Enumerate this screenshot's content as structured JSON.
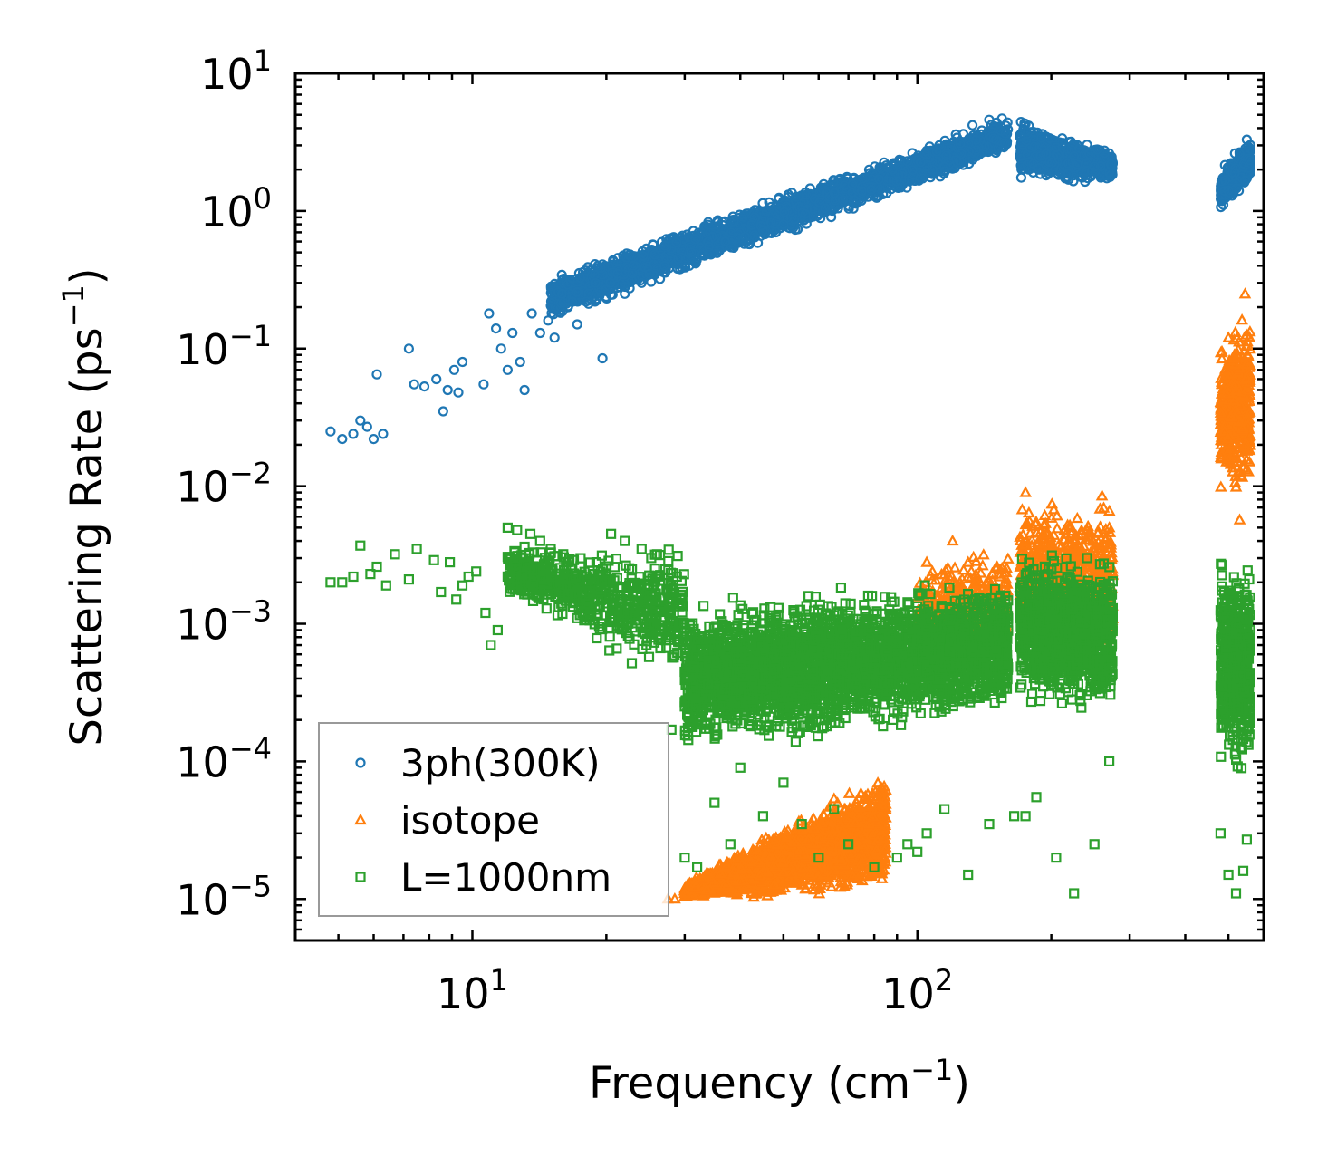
{
  "chart_data": {
    "type": "scatter",
    "xscale": "log",
    "yscale": "log",
    "xlim": [
      4,
      600
    ],
    "ylim": [
      5e-06,
      10
    ],
    "xlabel": "Frequency (cm",
    "xlabel_sup": "−1",
    "xlabel_close": ")",
    "ylabel": "Scattering Rate (ps",
    "ylabel_sup": "−1",
    "ylabel_close": ")",
    "x_ticks": [
      {
        "value": 10,
        "base": "10",
        "exp": "1"
      },
      {
        "value": 100,
        "base": "10",
        "exp": "2"
      }
    ],
    "y_ticks": [
      {
        "value": 10,
        "base": "10",
        "exp": "1"
      },
      {
        "value": 1,
        "base": "10",
        "exp": "0"
      },
      {
        "value": 0.1,
        "base": "10",
        "exp": "−1"
      },
      {
        "value": 0.01,
        "base": "10",
        "exp": "−2"
      },
      {
        "value": 0.001,
        "base": "10",
        "exp": "−3"
      },
      {
        "value": 0.0001,
        "base": "10",
        "exp": "−4"
      },
      {
        "value": 1e-05,
        "base": "10",
        "exp": "−5"
      }
    ],
    "legend_position": "lower-left",
    "series": [
      {
        "name": "3ph(300K)",
        "marker": "circle",
        "color": "#1f77b4",
        "points": [
          [
            4.8,
            0.025
          ],
          [
            5.1,
            0.022
          ],
          [
            5.4,
            0.024
          ],
          [
            5.6,
            0.03
          ],
          [
            5.8,
            0.027
          ],
          [
            6.0,
            0.022
          ],
          [
            6.3,
            0.024
          ],
          [
            6.1,
            0.065
          ],
          [
            7.2,
            0.1
          ],
          [
            7.4,
            0.055
          ],
          [
            7.8,
            0.053
          ],
          [
            8.3,
            0.06
          ],
          [
            8.6,
            0.035
          ],
          [
            8.8,
            0.05
          ],
          [
            9.1,
            0.07
          ],
          [
            9.3,
            0.048
          ],
          [
            9.5,
            0.08
          ],
          [
            10.6,
            0.055
          ],
          [
            10.9,
            0.18
          ],
          [
            11.3,
            0.14
          ],
          [
            11.6,
            0.1
          ],
          [
            12.0,
            0.07
          ],
          [
            12.3,
            0.13
          ],
          [
            12.8,
            0.08
          ],
          [
            13.1,
            0.05
          ],
          [
            13.6,
            0.18
          ],
          [
            14.2,
            0.13
          ],
          [
            14.8,
            0.16
          ],
          [
            15.3,
            0.12
          ],
          [
            15.9,
            0.25
          ],
          [
            16.4,
            0.2
          ],
          [
            17.2,
            0.15
          ],
          [
            18.0,
            0.22
          ],
          [
            18.9,
            0.3
          ],
          [
            19.6,
            0.085
          ],
          [
            20.4,
            0.3
          ],
          [
            21.2,
            0.35
          ],
          [
            22.0,
            0.25
          ],
          [
            23.0,
            0.4
          ],
          [
            24.0,
            0.3
          ],
          [
            25.0,
            0.35
          ],
          [
            27.0,
            0.4
          ],
          [
            29.0,
            0.45
          ],
          [
            31.0,
            0.5
          ],
          [
            34.0,
            0.55
          ],
          [
            37.0,
            0.6
          ],
          [
            41.0,
            0.65
          ],
          [
            45.0,
            0.72
          ],
          [
            50.0,
            0.8
          ],
          [
            56.0,
            0.95
          ],
          [
            62.0,
            1.05
          ],
          [
            68.0,
            1.2
          ],
          [
            75.0,
            1.4
          ],
          [
            82.0,
            1.7
          ],
          [
            88.0,
            2.0
          ],
          [
            95.0,
            2.3
          ],
          [
            104.0,
            2.6
          ],
          [
            112.0,
            3.0
          ],
          [
            122.0,
            3.6
          ],
          [
            133.0,
            4.2
          ],
          [
            145.0,
            4.6
          ],
          [
            155.0,
            4.7
          ],
          [
            175.0,
            4.3
          ],
          [
            190.0,
            3.4
          ],
          [
            205.0,
            2.9
          ],
          [
            225.0,
            2.5
          ],
          [
            250.0,
            2.1
          ],
          [
            270.0,
            1.9
          ],
          [
            490.0,
            1.4
          ],
          [
            510.0,
            1.9
          ],
          [
            530.0,
            2.6
          ],
          [
            550.0,
            3.3
          ]
        ],
        "bands": [
          {
            "x": [
              15,
              160
            ],
            "y_low": [
              0.15,
              2.6
            ],
            "y_high": [
              0.35,
              5.0
            ],
            "n": 2600
          },
          {
            "x": [
              170,
              275
            ],
            "y_low": [
              1.6,
              1.6
            ],
            "y_high": [
              4.8,
              2.7
            ],
            "n": 900
          },
          {
            "x": [
              480,
              560
            ],
            "y_low": [
              0.95,
              1.6
            ],
            "y_high": [
              2.0,
              3.6
            ],
            "n": 500
          }
        ]
      },
      {
        "name": "isotope",
        "marker": "triangle",
        "color": "#ff7f0e",
        "points": [
          [
            27.5,
            1e-05
          ],
          [
            28.5,
            1e-05
          ],
          [
            30.0,
            1.1e-05
          ],
          [
            105.0,
            0.0028
          ],
          [
            120.0,
            0.004
          ],
          [
            130.0,
            0.0028
          ],
          [
            175.0,
            0.009
          ],
          [
            185.0,
            0.0055
          ],
          [
            195.0,
            0.0045
          ],
          [
            260.0,
            0.0085
          ],
          [
            270.0,
            0.005
          ],
          [
            500.0,
            0.12
          ],
          [
            520.0,
            0.05
          ],
          [
            545.0,
            0.25
          ],
          [
            550.0,
            0.018
          ],
          [
            530.0,
            0.0057
          ]
        ],
        "bands": [
          {
            "x": [
              30,
              85
            ],
            "y_low": [
              1e-05,
              1e-05
            ],
            "y_high": [
              1.3e-05,
              0.0001
            ],
            "n": 2600
          },
          {
            "x": [
              100,
              160
            ],
            "y_low": [
              0.0003,
              0.0005
            ],
            "y_high": [
              0.003,
              0.0045
            ],
            "n": 500
          },
          {
            "x": [
              170,
              275
            ],
            "y_low": [
              0.0005,
              0.0005
            ],
            "y_high": [
              0.009,
              0.009
            ],
            "n": 700
          },
          {
            "x": [
              480,
              560
            ],
            "y_low": [
              0.008,
              0.008
            ],
            "y_high": [
              0.11,
              0.25
            ],
            "n": 500
          }
        ]
      },
      {
        "name": "L=1000nm",
        "marker": "square",
        "color": "#2ca02c",
        "points": [
          [
            4.8,
            0.002
          ],
          [
            5.1,
            0.002
          ],
          [
            5.4,
            0.0022
          ],
          [
            5.6,
            0.0037
          ],
          [
            5.9,
            0.0023
          ],
          [
            6.1,
            0.0026
          ],
          [
            6.4,
            0.0019
          ],
          [
            6.7,
            0.0032
          ],
          [
            7.2,
            0.0021
          ],
          [
            7.5,
            0.0035
          ],
          [
            8.2,
            0.0029
          ],
          [
            8.5,
            0.0017
          ],
          [
            8.9,
            0.0028
          ],
          [
            9.2,
            0.0015
          ],
          [
            9.5,
            0.0019
          ],
          [
            9.8,
            0.0022
          ],
          [
            10.2,
            0.0024
          ],
          [
            10.7,
            0.0012
          ],
          [
            11.0,
            0.0007
          ],
          [
            11.4,
            0.0009
          ],
          [
            12.0,
            0.005
          ],
          [
            12.6,
            0.0048
          ],
          [
            13.5,
            0.0045
          ],
          [
            14.2,
            0.004
          ],
          [
            15.0,
            0.0035
          ],
          [
            16.0,
            0.0032
          ],
          [
            17.5,
            0.003
          ],
          [
            19.0,
            0.0028
          ],
          [
            20.5,
            0.0045
          ],
          [
            22.0,
            0.004
          ],
          [
            24.0,
            0.0035
          ],
          [
            26.0,
            0.0032
          ],
          [
            28.0,
            0.00017
          ],
          [
            30.0,
            2e-05
          ],
          [
            32.0,
            1.7e-05
          ],
          [
            35.0,
            5e-05
          ],
          [
            38.0,
            2.5e-05
          ],
          [
            40.0,
            9e-05
          ],
          [
            45.0,
            4e-05
          ],
          [
            50.0,
            7e-05
          ],
          [
            55.0,
            3.5e-05
          ],
          [
            60.0,
            2e-05
          ],
          [
            65.0,
            4.5e-05
          ],
          [
            70.0,
            2.5e-05
          ],
          [
            80.0,
            1.7e-05
          ],
          [
            90.0,
            2e-05
          ],
          [
            95.0,
            2.5e-05
          ],
          [
            100.0,
            2.2e-05
          ],
          [
            105.0,
            3e-05
          ],
          [
            115.0,
            4.5e-05
          ],
          [
            130.0,
            1.5e-05
          ],
          [
            145.0,
            3.5e-05
          ],
          [
            165.0,
            4e-05
          ],
          [
            175.0,
            4e-05
          ],
          [
            185.0,
            5.5e-05
          ],
          [
            205.0,
            2e-05
          ],
          [
            225.0,
            1.1e-05
          ],
          [
            250.0,
            2.5e-05
          ],
          [
            270.0,
            0.0001
          ],
          [
            480.0,
            3e-05
          ],
          [
            500.0,
            1.5e-05
          ],
          [
            520.0,
            1.1e-05
          ],
          [
            540.0,
            1.6e-05
          ],
          [
            550.0,
            2.7e-05
          ]
        ],
        "bands": [
          {
            "x": [
              12,
              30
            ],
            "y_low": [
              0.0015,
              0.0003
            ],
            "y_high": [
              0.004,
              0.004
            ],
            "n": 650
          },
          {
            "x": [
              30,
              160
            ],
            "y_low": [
              0.0001,
              0.0002
            ],
            "y_high": [
              0.0015,
              0.0025
            ],
            "n": 3200
          },
          {
            "x": [
              170,
              275
            ],
            "y_low": [
              0.0002,
              0.0002
            ],
            "y_high": [
              0.004,
              0.0035
            ],
            "n": 1100
          },
          {
            "x": [
              480,
              560
            ],
            "y_low": [
              8e-05,
              8e-05
            ],
            "y_high": [
              0.0035,
              0.003
            ],
            "n": 600
          }
        ]
      }
    ]
  }
}
